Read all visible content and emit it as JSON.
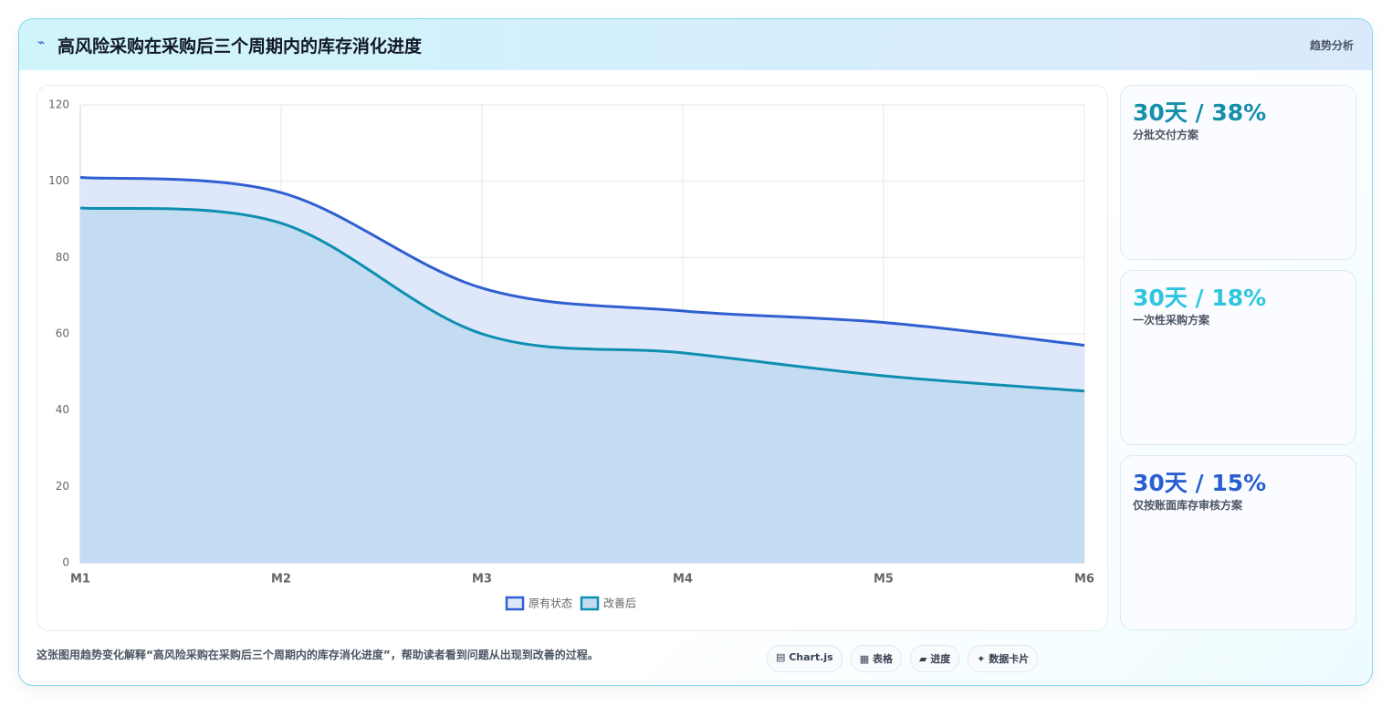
{
  "header": {
    "icon": "⌁",
    "title": "高风险采购在采购后三个周期内的库存消化进度",
    "tag": "趋势分析"
  },
  "chart_data": {
    "type": "area",
    "categories": [
      "M1",
      "M2",
      "M3",
      "M4",
      "M5",
      "M6"
    ],
    "series": [
      {
        "name": "原有状态",
        "color": "#2f5fd0",
        "fill": "#dfe8fb",
        "values": [
          101,
          97,
          72,
          66,
          63,
          57
        ]
      },
      {
        "name": "改善后",
        "color": "#0e8fb0",
        "fill": "#c4dcf2",
        "values": [
          93,
          89,
          60,
          55,
          49,
          45
        ]
      }
    ],
    "ylim": [
      0,
      120
    ],
    "yticks": [
      0,
      20,
      40,
      60,
      80,
      100,
      120
    ],
    "grid": true,
    "legend": "bottom"
  },
  "stat_cards": [
    {
      "value": "30天 / 38%",
      "label": "分批交付方案",
      "color": "#168fab"
    },
    {
      "value": "30天 / 18%",
      "label": "一次性采购方案",
      "color": "#2ec6df"
    },
    {
      "value": "30天 / 15%",
      "label": "仅按账面库存审核方案",
      "color": "#2a5fd0"
    }
  ],
  "footer": {
    "caption": "这张图用趋势变化解释“高风险采购在采购后三个周期内的库存消化进度”，帮助读者看到问题从出现到改善的过程。",
    "tags": [
      "▤ Chart.js",
      "▦ 表格",
      "▰ 进度",
      "✦ 数据卡片"
    ]
  }
}
